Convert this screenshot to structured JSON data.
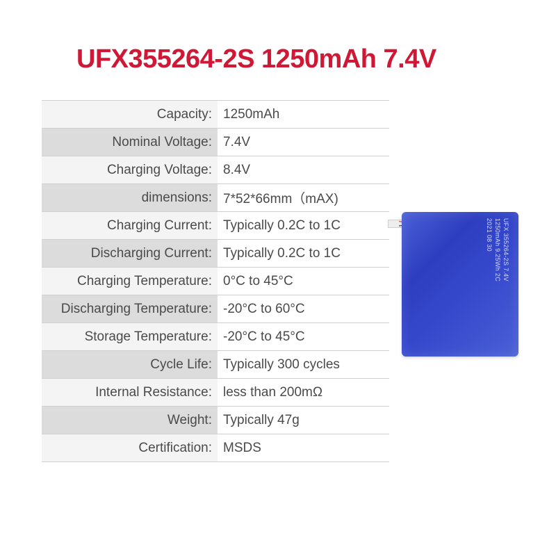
{
  "title": {
    "text": "UFX355264-2S 1250mAh 7.4V",
    "color": "#cf1835"
  },
  "table": {
    "label_bg_odd": "#f4f4f4",
    "label_bg_even": "#dcdcdc",
    "border_color": "#cfcfcf",
    "text_color": "#4a4a4a",
    "font_size": 19,
    "rows": [
      {
        "label": "Capacity:",
        "value": "1250mAh"
      },
      {
        "label": "Nominal Voltage:",
        "value": "7.4V"
      },
      {
        "label": "Charging Voltage:",
        "value": "8.4V"
      },
      {
        "label": "dimensions:",
        "value": "7*52*66mm（mAX)"
      },
      {
        "label": "Charging Current:",
        "value": "Typically 0.2C to 1C"
      },
      {
        "label": "Discharging Current:",
        "value": "Typically 0.2C to 1C"
      },
      {
        "label": "Charging Temperature:",
        "value": "0°C to 45°C"
      },
      {
        "label": "Discharging Temperature:",
        "value": "-20°C to 60°C"
      },
      {
        "label": "Storage Temperature:",
        "value": "-20°C to 45°C"
      },
      {
        "label": "Cycle Life:",
        "value": "Typically 300 cycles"
      },
      {
        "label": "Internal Resistance:",
        "value": "less than 200mΩ"
      },
      {
        "label": "Weight:",
        "value": "Typically 47g"
      },
      {
        "label": "Certification:",
        "value": "MSDS"
      }
    ]
  },
  "battery": {
    "body_color": "#3a4cd0",
    "label_lines": [
      "UFX 355264-2S 7.4V",
      "1250mAh 9.25Wh 2C",
      "2021 08 30"
    ]
  }
}
